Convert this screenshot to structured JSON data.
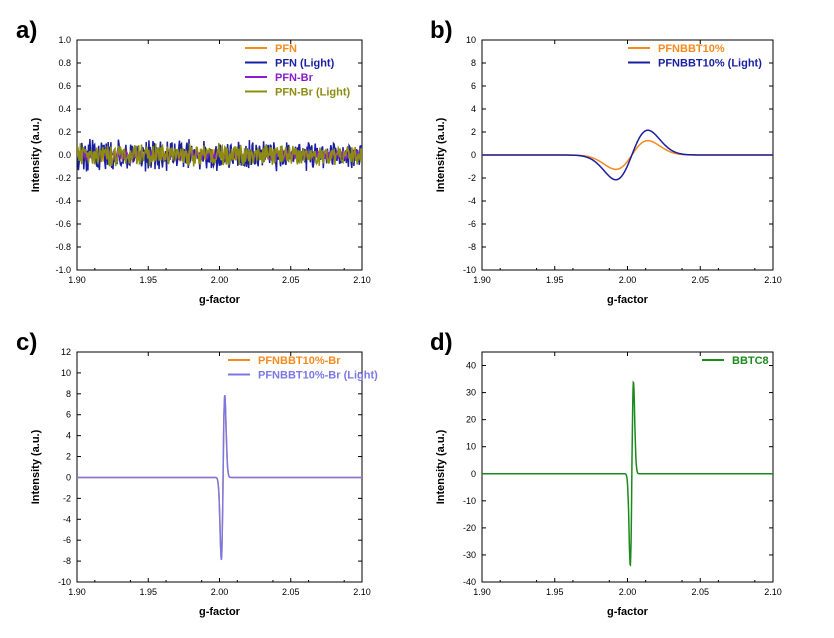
{
  "chart_data": [
    {
      "panel_label": "a)",
      "type": "line",
      "xlabel": "g-factor",
      "ylabel": "Intensity (a.u.)",
      "xlim": [
        1.9,
        2.1
      ],
      "ylim": [
        -1.0,
        1.0
      ],
      "xticks": [
        "1.90",
        "1.95",
        "2.00",
        "2.05",
        "2.10"
      ],
      "yticks": [
        "-1.0",
        "-0.8",
        "-0.6",
        "-0.4",
        "-0.2",
        "0.0",
        "0.2",
        "0.4",
        "0.6",
        "0.8",
        "1.0"
      ],
      "legend_position": "top-right",
      "series": [
        {
          "name": "PFN",
          "color": "#f58a1f",
          "shape": "noise",
          "amplitude": 0.06
        },
        {
          "name": "PFN     (Light)",
          "color": "#1a1fa0",
          "shape": "noise",
          "amplitude": 0.15
        },
        {
          "name": "PFN-Br",
          "color": "#8a1ccc",
          "shape": "noise",
          "amplitude": 0.05
        },
        {
          "name": "PFN-Br (Light)",
          "color": "#8c8c12",
          "shape": "noise",
          "amplitude": 0.11
        }
      ]
    },
    {
      "panel_label": "b)",
      "type": "line",
      "xlabel": "g-factor",
      "ylabel": "Intensity (a.u.)",
      "xlim": [
        1.9,
        2.1
      ],
      "ylim": [
        -10,
        10
      ],
      "xticks": [
        "1.90",
        "1.95",
        "2.00",
        "2.05",
        "2.10"
      ],
      "yticks": [
        "-10",
        "-8",
        "-6",
        "-4",
        "-2",
        "0",
        "2",
        "4",
        "6",
        "8",
        "10"
      ],
      "legend_position": "top-right",
      "series": [
        {
          "name": "PFNBBT10%",
          "color": "#f58a1f",
          "shape": "derivative",
          "center": 2.003,
          "width": 0.011,
          "peak": 1.25
        },
        {
          "name": "PFNBBT10% (Light)",
          "color": "#1a1fa0",
          "shape": "derivative",
          "center": 2.003,
          "width": 0.011,
          "peak": 2.15
        }
      ]
    },
    {
      "panel_label": "c)",
      "type": "line",
      "xlabel": "g-factor",
      "ylabel": "Intensity (a.u.)",
      "xlim": [
        1.9,
        2.1
      ],
      "ylim": [
        -10,
        12
      ],
      "xticks": [
        "1.90",
        "1.95",
        "2.00",
        "2.05",
        "2.10"
      ],
      "yticks": [
        "-10",
        "-8",
        "-6",
        "-4",
        "-2",
        "0",
        "2",
        "4",
        "6",
        "8",
        "10",
        "12"
      ],
      "legend_position": "top-right",
      "series": [
        {
          "name": "PFNBBT10%-Br",
          "color": "#f58a1f",
          "shape": "derivative",
          "center": 2.0025,
          "width": 0.0012,
          "peak": 7.8
        },
        {
          "name": "PFNBBT10%-Br (Light)",
          "color": "#7b78e6",
          "shape": "derivative",
          "center": 2.0025,
          "width": 0.0012,
          "peak": 7.9
        }
      ]
    },
    {
      "panel_label": "d)",
      "type": "line",
      "xlabel": "g-factor",
      "ylabel": "Intensity (a.u.)",
      "xlim": [
        1.9,
        2.1
      ],
      "ylim": [
        -40,
        45
      ],
      "xticks": [
        "1.90",
        "1.95",
        "2.00",
        "2.05",
        "2.10"
      ],
      "yticks": [
        "-40",
        "-30",
        "-20",
        "-10",
        "0",
        "10",
        "20",
        "30",
        "40"
      ],
      "legend_position": "top-right",
      "series": [
        {
          "name": "BBTC8",
          "color": "#1a8a1a",
          "shape": "derivative",
          "center": 2.003,
          "width": 0.0011,
          "peak": 34
        }
      ]
    }
  ]
}
